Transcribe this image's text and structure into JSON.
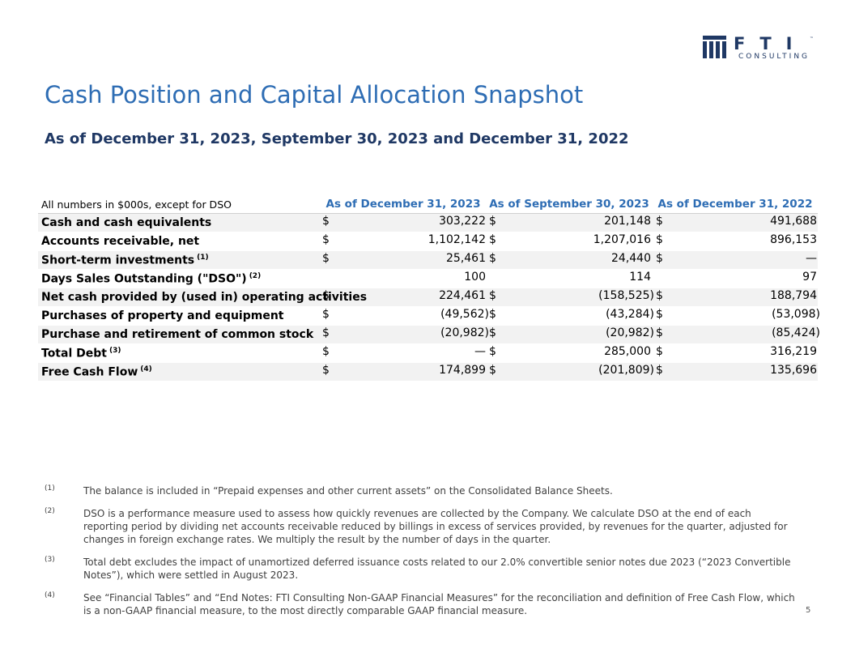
{
  "header": {
    "logo_text": "FTI",
    "logo_trademark": "™",
    "logo_subtext": "CONSULTING",
    "title": "Cash Position and Capital Allocation Snapshot",
    "subtitle": "As of December 31, 2023, September 30, 2023 and December 31, 2022"
  },
  "table": {
    "corner": "All numbers in $000s, except for DSO",
    "columns": [
      "As of December 31, 2023",
      "As of September 30, 2023",
      "As of December 31, 2022"
    ],
    "rows": [
      {
        "label": "Cash and cash equivalents",
        "cells": [
          {
            "currency": "$",
            "value": "303,222"
          },
          {
            "currency": "$",
            "value": "201,148"
          },
          {
            "currency": "$",
            "value": "491,688"
          }
        ]
      },
      {
        "label": "Accounts receivable, net",
        "cells": [
          {
            "currency": "$",
            "value": "1,102,142"
          },
          {
            "currency": "$",
            "value": "1,207,016"
          },
          {
            "currency": "$",
            "value": "896,153"
          }
        ]
      },
      {
        "label": "Short-term investments",
        "note": "(1)",
        "cells": [
          {
            "currency": "$",
            "value": "25,461"
          },
          {
            "currency": "$",
            "value": "24,440"
          },
          {
            "currency": "$",
            "value": "—"
          }
        ]
      },
      {
        "label": "Days Sales Outstanding (\"DSO\")",
        "note": "(2)",
        "cells": [
          {
            "value": "100"
          },
          {
            "value": "114"
          },
          {
            "value": "97"
          }
        ]
      },
      {
        "label": "Net cash provided by (used in) operating activities",
        "cells": [
          {
            "currency": "$",
            "value": "224,461"
          },
          {
            "currency": "$",
            "value": "(158,525)"
          },
          {
            "currency": "$",
            "value": "188,794"
          }
        ]
      },
      {
        "label": "Purchases of property and equipment",
        "cells": [
          {
            "currency": "$",
            "value": "(49,562)"
          },
          {
            "currency": "$",
            "value": "(43,284)"
          },
          {
            "currency": "$",
            "value": "(53,098)"
          }
        ]
      },
      {
        "label": "Purchase and retirement of common stock",
        "cells": [
          {
            "currency": "$",
            "value": "(20,982)"
          },
          {
            "currency": "$",
            "value": "(20,982)"
          },
          {
            "currency": "$",
            "value": "(85,424)"
          }
        ]
      },
      {
        "label": "Total Debt",
        "note": "(3)",
        "cells": [
          {
            "currency": "$",
            "value": "—"
          },
          {
            "currency": "$",
            "value": "285,000"
          },
          {
            "currency": "$",
            "value": "316,219"
          }
        ]
      },
      {
        "label": "Free Cash Flow",
        "note": "(4)",
        "cells": [
          {
            "currency": "$",
            "value": "174,899"
          },
          {
            "currency": "$",
            "value": "(201,809)"
          },
          {
            "currency": "$",
            "value": "135,696"
          }
        ]
      }
    ]
  },
  "footnotes": [
    {
      "marker": "(1)",
      "text": "The balance is included in “Prepaid expenses and other current assets” on the Consolidated Balance Sheets."
    },
    {
      "marker": "(2)",
      "text": "DSO is a performance measure used to assess how quickly revenues are collected by the Company. We calculate DSO at the end of each reporting period by dividing net accounts receivable reduced by billings in excess of services provided, by revenues for the quarter, adjusted for changes in foreign exchange rates. We multiply the result by the number of days in the quarter."
    },
    {
      "marker": "(3)",
      "text": "Total debt excludes the impact of unamortized deferred issuance costs related to our 2.0% convertible senior notes due 2023 (“2023 Convertible Notes”), which were settled in August 2023."
    },
    {
      "marker": "(4)",
      "text": "See “Financial Tables” and “End Notes: FTI Consulting Non-GAAP Financial Measures” for the reconciliation and definition of Free Cash Flow, which is a non-GAAP financial measure, to the most directly comparable GAAP financial measure."
    }
  ],
  "page_number": "5"
}
